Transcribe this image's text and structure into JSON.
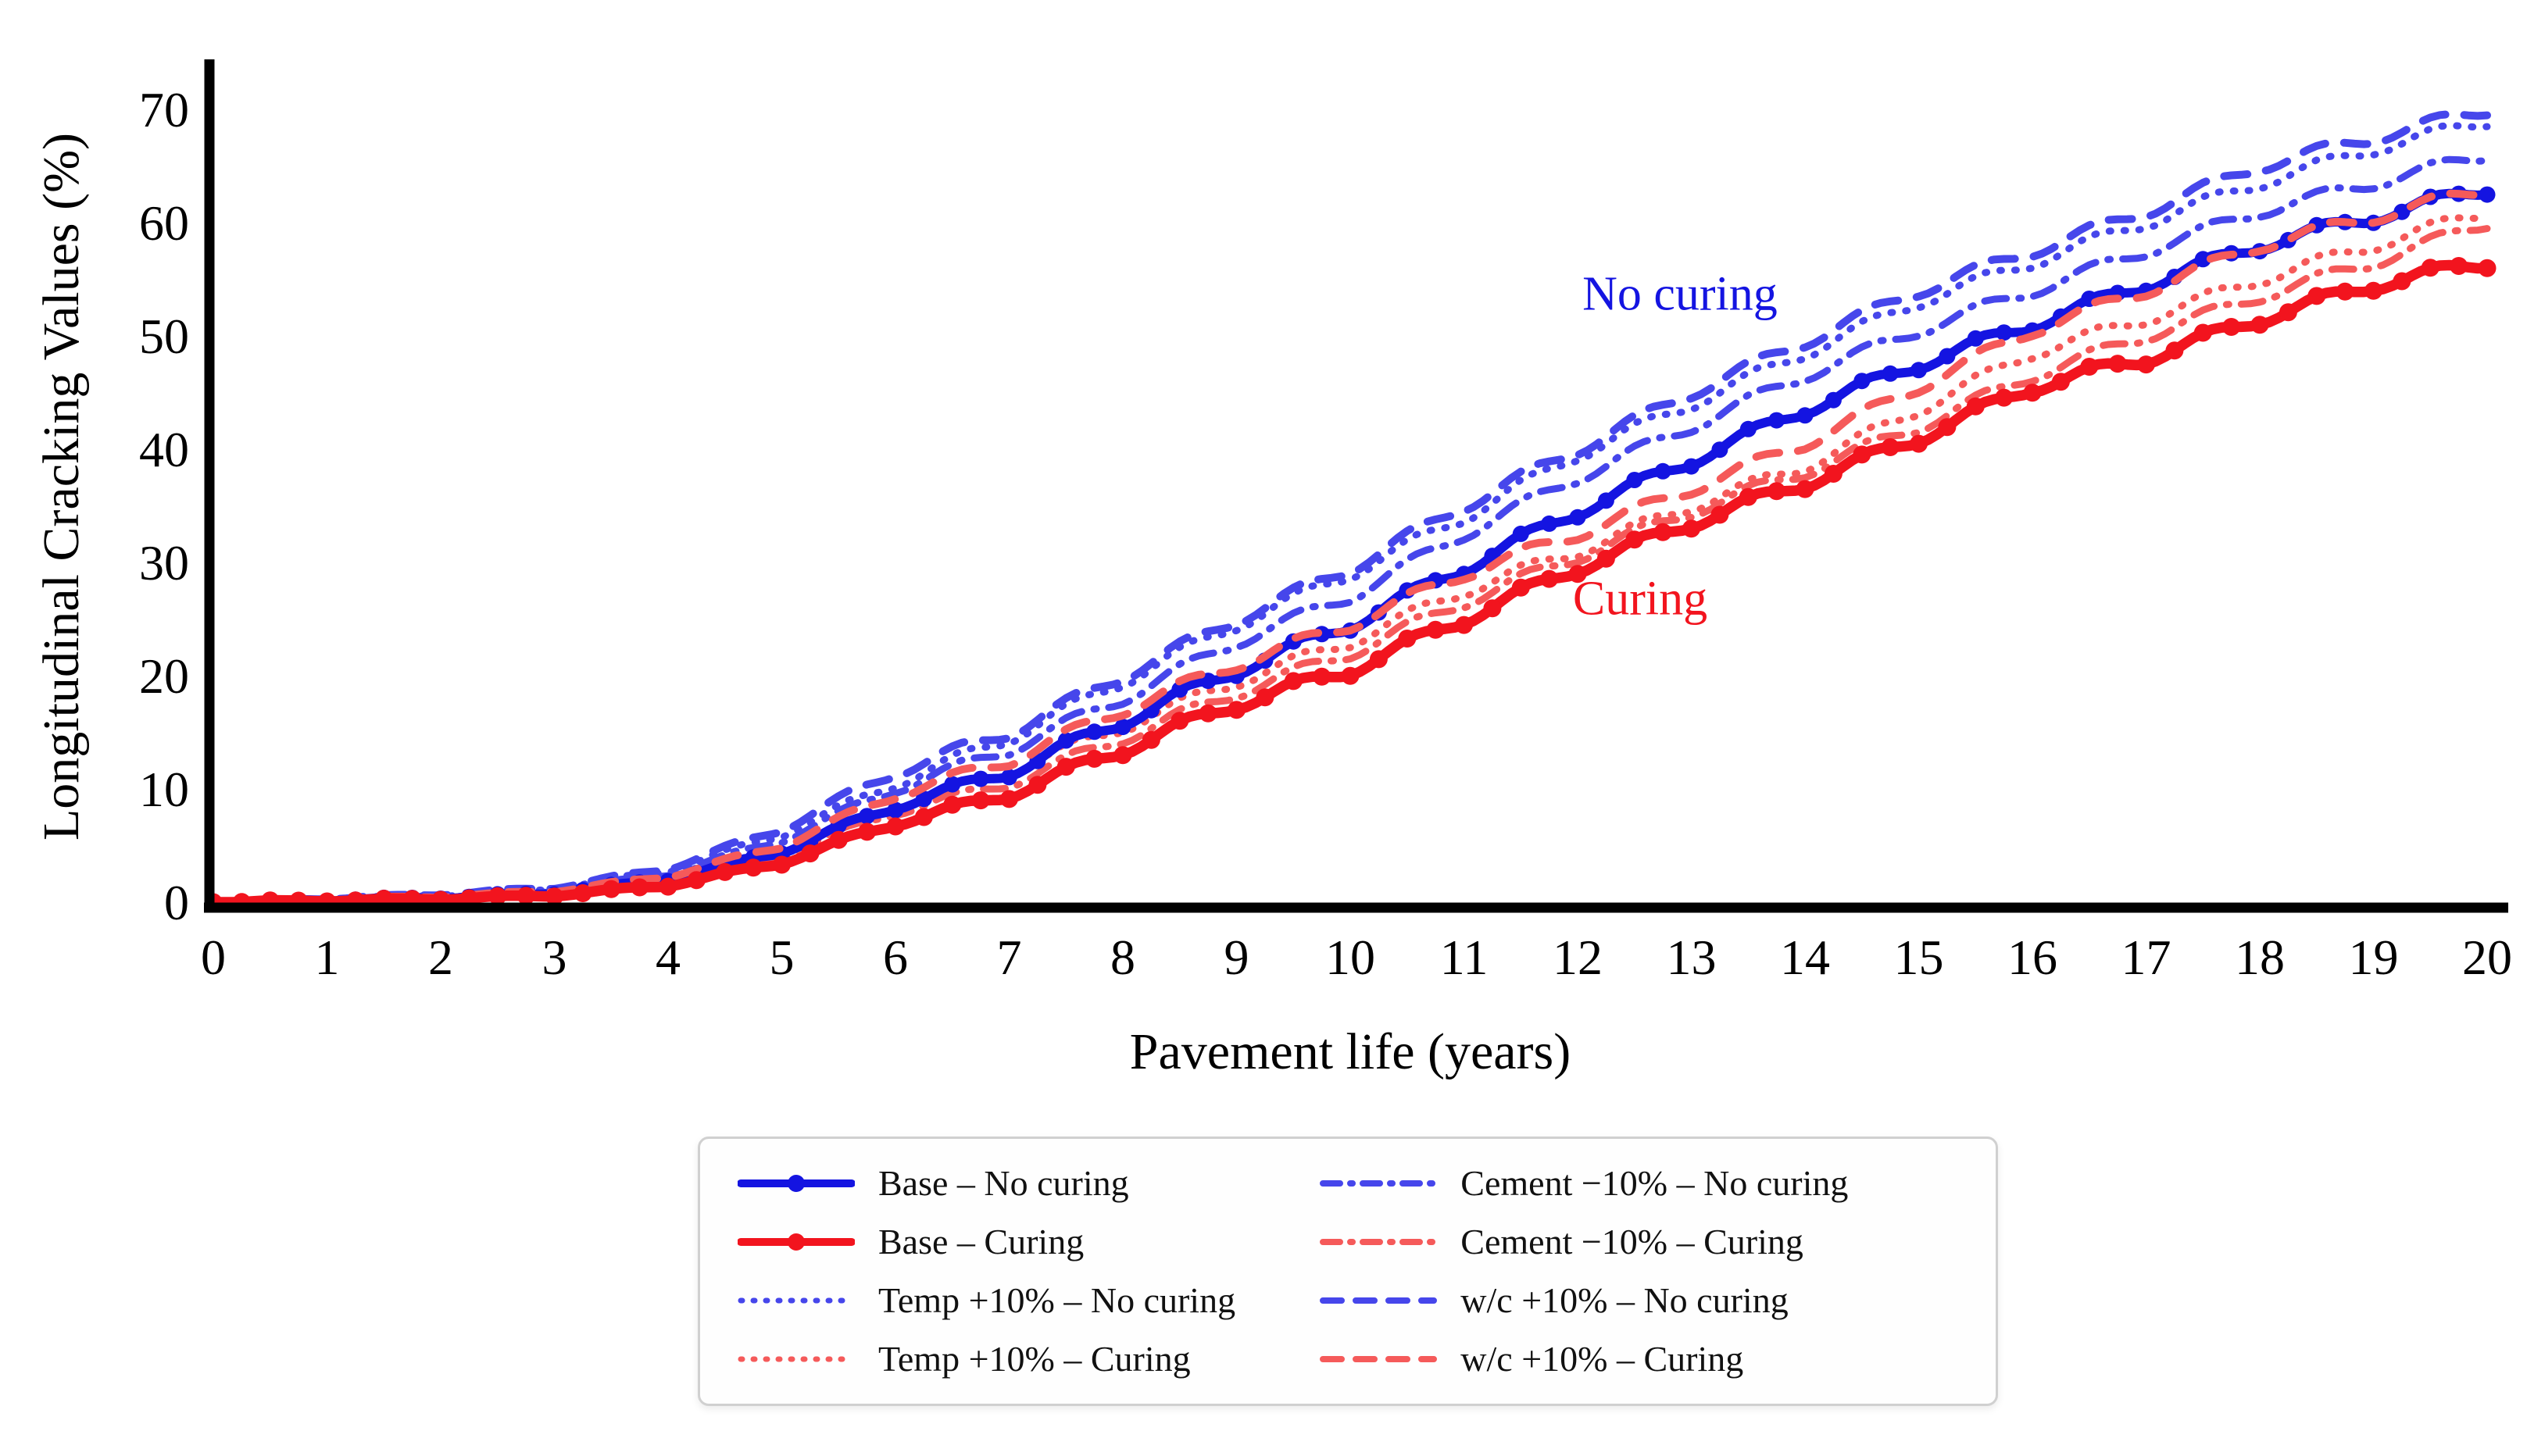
{
  "chart_data": {
    "type": "line",
    "title": "",
    "xlabel": "Pavement life (years)",
    "ylabel": "Longitudinal Cracking Values (%)",
    "xlim": [
      0,
      20
    ],
    "ylim": [
      0,
      70
    ],
    "x_ticks": [
      0,
      1,
      2,
      3,
      4,
      5,
      6,
      7,
      8,
      9,
      10,
      11,
      12,
      13,
      14,
      15,
      16,
      17,
      18,
      19,
      20
    ],
    "y_ticks": [
      0,
      10,
      20,
      30,
      40,
      50,
      60,
      70
    ],
    "grid": false,
    "legend_position": "bottom-center-two-columns",
    "colors": {
      "blue_bold": "#1414e1",
      "blue_light": "#4646eb",
      "red_bold": "#f2141e",
      "red_light": "#f55a5a",
      "axis": "#000000",
      "legend_border": "#d0d0d0"
    },
    "x": [
      0,
      1,
      2,
      3,
      4,
      5,
      6,
      7,
      8,
      9,
      10,
      11,
      12,
      13,
      14,
      15,
      16,
      17,
      18,
      19,
      20
    ],
    "series": [
      {
        "id": "base_nc",
        "name": "Base – No curing",
        "color": "#1414e1",
        "style": "solid",
        "markers": true,
        "values": [
          0,
          0.2,
          0.4,
          0.8,
          2.0,
          4.5,
          8.5,
          11.5,
          16.0,
          20.5,
          24.5,
          29.5,
          34.5,
          39.0,
          43.5,
          47.5,
          51.0,
          54.5,
          58.0,
          60.5,
          63.0
        ]
      },
      {
        "id": "base_c",
        "name": "Base – Curing",
        "color": "#f2141e",
        "style": "solid",
        "markers": true,
        "values": [
          0,
          0.15,
          0.3,
          0.6,
          1.5,
          3.5,
          7.0,
          9.5,
          13.5,
          17.5,
          20.5,
          25.0,
          29.5,
          33.5,
          37.0,
          41.0,
          45.5,
          48.0,
          51.5,
          54.5,
          56.5
        ]
      },
      {
        "id": "temp_nc",
        "name": "Temp +10% – No curing",
        "color": "#4646eb",
        "style": "dotted",
        "markers": false,
        "values": [
          0,
          0.3,
          0.6,
          1.2,
          2.8,
          6.0,
          10.5,
          14.5,
          19.5,
          24.5,
          29.0,
          34.0,
          39.5,
          44.0,
          48.5,
          53.0,
          56.5,
          60.0,
          63.5,
          66.5,
          69.0
        ]
      },
      {
        "id": "temp_c",
        "name": "Temp +10% – Curing",
        "color": "#f55a5a",
        "style": "dotted",
        "markers": false,
        "values": [
          0,
          0.25,
          0.5,
          0.9,
          2.0,
          4.5,
          8.5,
          11.5,
          15.5,
          19.5,
          23.0,
          27.5,
          31.0,
          35.0,
          38.5,
          43.5,
          48.5,
          51.5,
          55.0,
          58.0,
          61.0
        ]
      },
      {
        "id": "cement_nc",
        "name": "Cement −10% – No curing",
        "color": "#4646eb",
        "style": "dashdot",
        "markers": false,
        "values": [
          0,
          0.25,
          0.5,
          1.0,
          2.5,
          5.5,
          10.0,
          13.5,
          18.0,
          23.0,
          27.0,
          32.5,
          37.5,
          42.0,
          46.5,
          50.5,
          54.0,
          57.5,
          61.0,
          63.5,
          66.0
        ]
      },
      {
        "id": "cement_c",
        "name": "Cement −10% – Curing",
        "color": "#f55a5a",
        "style": "dashdot",
        "markers": false,
        "values": [
          0,
          0.2,
          0.4,
          0.8,
          1.8,
          4.2,
          8.0,
          10.5,
          14.5,
          18.5,
          22.0,
          26.5,
          30.5,
          34.5,
          38.0,
          42.0,
          46.5,
          50.0,
          53.5,
          56.5,
          60.0
        ]
      },
      {
        "id": "wc_nc",
        "name": "w/c +10% – No curing",
        "color": "#4646eb",
        "style": "dashed",
        "markers": false,
        "values": [
          0,
          0.35,
          0.7,
          1.3,
          3.0,
          6.5,
          11.5,
          15.0,
          20.0,
          25.0,
          29.5,
          35.0,
          40.0,
          45.0,
          49.5,
          54.0,
          57.5,
          61.0,
          65.0,
          67.5,
          70.0
        ]
      },
      {
        "id": "wc_c",
        "name": "w/c +10% – Curing",
        "color": "#f55a5a",
        "style": "dashed",
        "markers": false,
        "values": [
          0,
          0.25,
          0.5,
          1.0,
          2.3,
          5.0,
          9.5,
          12.5,
          17.0,
          21.0,
          24.5,
          29.0,
          32.5,
          36.5,
          40.5,
          45.5,
          50.5,
          54.0,
          58.0,
          60.5,
          63.0
        ]
      }
    ],
    "annotations": [
      {
        "text": "No curing",
        "color": "#1414e1",
        "x": 12.9,
        "y": 52.3
      },
      {
        "text": "Curing",
        "color": "#f2141e",
        "x": 12.55,
        "y": 25.4
      }
    ]
  }
}
